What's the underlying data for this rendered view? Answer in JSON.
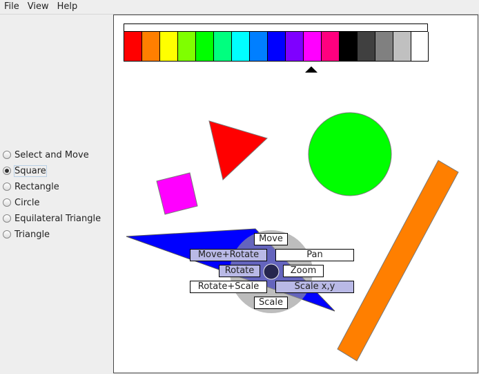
{
  "menubar": {
    "items": [
      "File",
      "View",
      "Help"
    ]
  },
  "sidebar": {
    "tools": [
      {
        "label": "Select and Move",
        "selected": false
      },
      {
        "label": "Square",
        "selected": true
      },
      {
        "label": "Rectangle",
        "selected": false
      },
      {
        "label": "Circle",
        "selected": false
      },
      {
        "label": "Equilateral Triangle",
        "selected": false
      },
      {
        "label": "Triangle",
        "selected": false
      }
    ]
  },
  "palette": {
    "colors": [
      "#ff0000",
      "#ff7f00",
      "#ffff00",
      "#7fff00",
      "#00ff00",
      "#00ff7f",
      "#00ffff",
      "#007fff",
      "#0000ff",
      "#7f00ff",
      "#ff00ff",
      "#ff007f",
      "#000000",
      "#404040",
      "#808080",
      "#c0c0c0",
      "#ffffff"
    ],
    "selected_color": "#ff00ff"
  },
  "shapes": {
    "triangle": {
      "fill": "#ff0000"
    },
    "circle": {
      "fill": "#00ff00"
    },
    "square": {
      "fill": "#ff00ff"
    },
    "bar": {
      "fill": "#ff7f00"
    },
    "blue_triangle": {
      "fill": "#0000ff"
    }
  },
  "pie_menu": {
    "move": "Move",
    "move_rotate": "Move+Rotate",
    "pan": "Pan",
    "rotate": "Rotate",
    "zoom": "Zoom",
    "rotate_scale": "Rotate+Scale",
    "scale_xy": "Scale x,y",
    "scale": "Scale"
  }
}
